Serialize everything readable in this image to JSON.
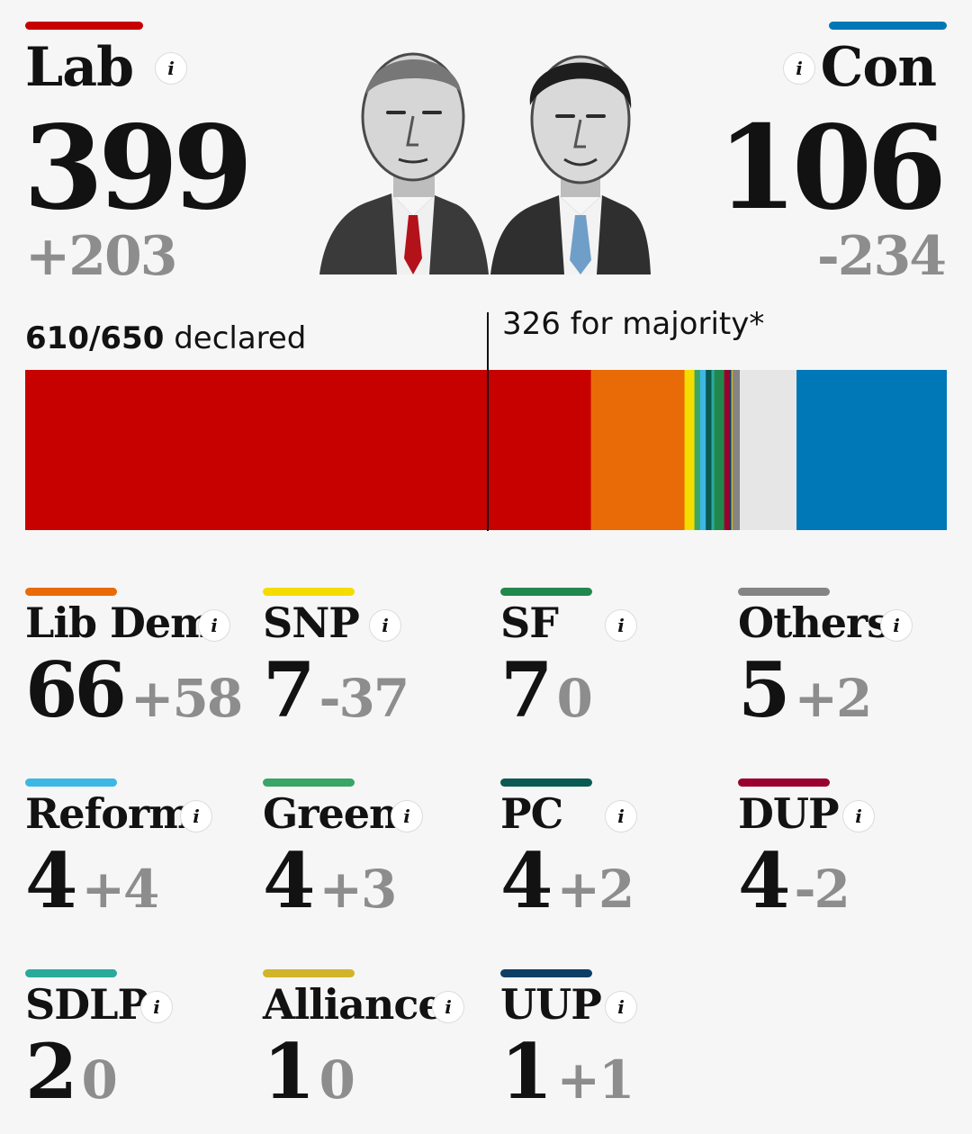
{
  "lab": {
    "name": "Lab",
    "seats": "399",
    "change": "+203",
    "color": "#c70000"
  },
  "con": {
    "name": "Con",
    "seats": "106",
    "change": "-234",
    "color": "#0077b6"
  },
  "info_icon_label": "i",
  "declared": {
    "count": "610/650",
    "label": "declared"
  },
  "majority_label": "326 for majority*",
  "parties": [
    {
      "name": "Lib Dem",
      "seats": "66",
      "change": "+58",
      "color": "#e96b07"
    },
    {
      "name": "SNP",
      "seats": "7",
      "change": "-37",
      "color": "#f5dc00"
    },
    {
      "name": "SF",
      "seats": "7",
      "change": "0",
      "color": "#22874d"
    },
    {
      "name": "Others",
      "seats": "5",
      "change": "+2",
      "color": "#848484"
    },
    {
      "name": "Reform",
      "seats": "4",
      "change": "+4",
      "color": "#3db7e4"
    },
    {
      "name": "Green",
      "seats": "4",
      "change": "+3",
      "color": "#39a566"
    },
    {
      "name": "PC",
      "seats": "4",
      "change": "+2",
      "color": "#0b5a52"
    },
    {
      "name": "DUP",
      "seats": "4",
      "change": "-2",
      "color": "#99002e"
    },
    {
      "name": "SDLP",
      "seats": "2",
      "change": "0",
      "color": "#2aaa9b"
    },
    {
      "name": "Alliance",
      "seats": "1",
      "change": "0",
      "color": "#d1b42a"
    },
    {
      "name": "UUP",
      "seats": "1",
      "change": "+1",
      "color": "#0d3e66"
    }
  ],
  "chart_data": {
    "type": "bar",
    "orientation": "horizontal-stacked",
    "total_seats": 650,
    "declared": 610,
    "majority": 326,
    "segments": [
      {
        "party": "Lab",
        "value": 399,
        "color": "#c70000"
      },
      {
        "party": "Lib Dem",
        "value": 66,
        "color": "#e96b07"
      },
      {
        "party": "SNP",
        "value": 7,
        "color": "#f5dc00"
      },
      {
        "party": "Green",
        "value": 4,
        "color": "#39a566"
      },
      {
        "party": "Reform",
        "value": 4,
        "color": "#3db7e4"
      },
      {
        "party": "PC",
        "value": 4,
        "color": "#0b5a52"
      },
      {
        "party": "SDLP",
        "value": 2,
        "color": "#2aaa9b"
      },
      {
        "party": "SF",
        "value": 7,
        "color": "#22874d"
      },
      {
        "party": "DUP",
        "value": 4,
        "color": "#99002e"
      },
      {
        "party": "UUP",
        "value": 1,
        "color": "#0d3e66"
      },
      {
        "party": "Alliance",
        "value": 1,
        "color": "#d1b42a"
      },
      {
        "party": "Others",
        "value": 5,
        "color": "#848484"
      },
      {
        "party": "Undeclared",
        "value": 40,
        "color": "#e6e6e6"
      },
      {
        "party": "Con",
        "value": 106,
        "color": "#0077b6"
      }
    ]
  }
}
